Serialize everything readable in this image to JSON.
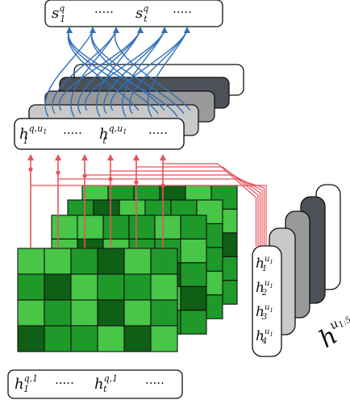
{
  "top_box": {
    "left": "s",
    "left_sup": "q",
    "left_sub": "1",
    "dots1": "·····",
    "right": "s",
    "right_sup": "q",
    "right_sub": "t",
    "dots2": "·····"
  },
  "mid_box": {
    "left": "h",
    "left_sup": "q,u",
    "left_sup_sub": "1",
    "left_sub": "1",
    "dots1": "·····",
    "right": "h",
    "right_sup": "q,u",
    "right_sup_sub": "1",
    "right_sub": "t",
    "dots2": "·····"
  },
  "bottom_box": {
    "left": "h",
    "left_sup": "q,1",
    "left_sub": "1",
    "dots1": "·····",
    "right": "h",
    "right_sup": "q,1",
    "right_sub": "t",
    "dots2": "·····"
  },
  "column": {
    "items": [
      {
        "base": "h",
        "sub": "1",
        "sup": "u",
        "sup_sub": "1"
      },
      {
        "base": "h",
        "sub": "2",
        "sup": "u",
        "sup_sub": "1"
      },
      {
        "base": "h",
        "sub": "3",
        "sup": "u",
        "sup_sub": "1"
      },
      {
        "base": "h",
        "sub": "4",
        "sup": "u",
        "sup_sub": "1"
      }
    ]
  },
  "stack_label": {
    "base": "h",
    "sup": "u",
    "sup_sub": "1:5"
  },
  "colors": {
    "blue_arrows": "#2f6fb8",
    "red_lines": "#e8525a",
    "green_light": "#47c647",
    "green_mid": "#1f9a2a",
    "green_dark": "#0f5f16",
    "gray_1": "#ededed",
    "gray_2": "#c9c9c9",
    "gray_3": "#9a9a9a",
    "gray_4": "#4c5158"
  }
}
